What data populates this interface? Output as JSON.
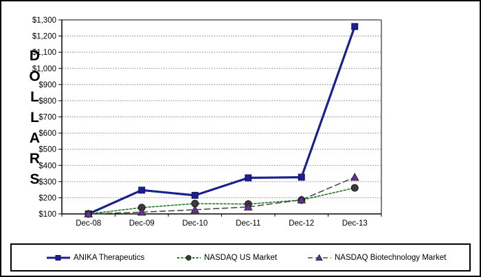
{
  "chart_data": {
    "type": "line",
    "title": "",
    "ylabel": "DOLLARS",
    "xlabel": "",
    "categories": [
      "Dec-08",
      "Dec-09",
      "Dec-10",
      "Dec-11",
      "Dec-12",
      "Dec-13"
    ],
    "series": [
      {
        "name": "ANIKA Therapeutics",
        "values": [
          100,
          247,
          215,
          323,
          327,
          1259
        ],
        "color": "#1c1f8f",
        "marker": "square",
        "marker_color": "#1c1f8f",
        "line_style": "solid"
      },
      {
        "name": "NASDAQ US Market",
        "values": [
          100,
          139,
          164,
          161,
          186,
          261
        ],
        "color": "#1e7a1e",
        "marker": "circle",
        "marker_color": "#3b3b3b",
        "line_style": "short-dash"
      },
      {
        "name": "NASDAQ Biotechnology Market",
        "values": [
          100,
          111,
          126,
          143,
          187,
          327
        ],
        "color": "#4a4a4a",
        "marker": "triangle",
        "marker_color": "#6a30a0",
        "line_style": "long-dash"
      }
    ],
    "y_ticks": [
      "$100",
      "$200",
      "$300",
      "$400",
      "$500",
      "$600",
      "$700",
      "$800",
      "$900",
      "$1,000",
      "$1,100",
      "$1,200",
      "$1,300"
    ],
    "ylim": [
      100,
      1300
    ],
    "grid": "horizontal-dotted",
    "legend_position": "bottom"
  },
  "colors": {
    "axis": "#000000",
    "plot_border": "#595959",
    "gridline": "#808080"
  }
}
